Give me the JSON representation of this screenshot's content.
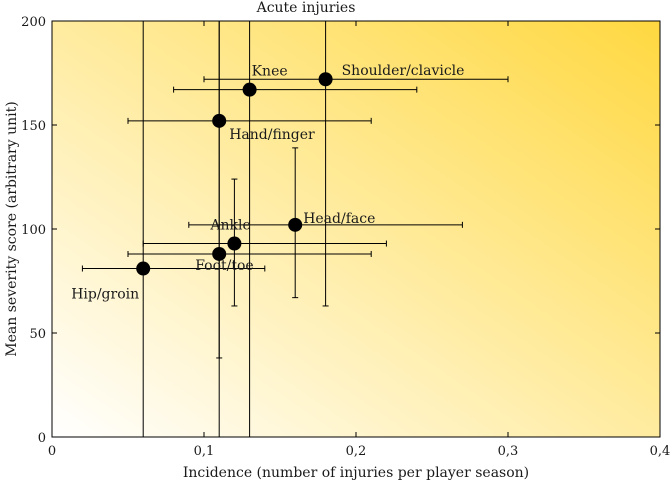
{
  "chart_data": {
    "type": "scatter",
    "title": "Acute injuries",
    "xlabel": "Incidence (number of injuries per player season)",
    "ylabel": "Mean severity score (arbitrary unit)",
    "xlim": [
      0,
      0.4
    ],
    "ylim": [
      0,
      200
    ],
    "xticks": [
      0,
      0.1,
      0.2,
      0.3,
      0.4
    ],
    "xtick_labels": [
      "0",
      "0,1",
      "0,2",
      "0,3",
      "0,4"
    ],
    "yticks": [
      0,
      50,
      100,
      150,
      200
    ],
    "ytick_labels": [
      "0",
      "50",
      "100",
      "150",
      "200"
    ],
    "grid": false,
    "background_gradient": [
      "#ffffff",
      "#ffd840"
    ],
    "points": [
      {
        "label": "Knee",
        "x": 0.13,
        "y": 167,
        "x_err": [
          0.08,
          0.24
        ],
        "y_err": [
          0,
          200
        ]
      },
      {
        "label": "Shoulder/clavicle",
        "x": 0.18,
        "y": 172,
        "x_err": [
          0.1,
          0.3
        ],
        "y_err": [
          63,
          200
        ]
      },
      {
        "label": "Hand/finger",
        "x": 0.11,
        "y": 152,
        "x_err": [
          0.05,
          0.21
        ],
        "y_err": [
          0,
          200
        ]
      },
      {
        "label": "Head/face",
        "x": 0.16,
        "y": 102,
        "x_err": [
          0.09,
          0.27
        ],
        "y_err": [
          67,
          139
        ]
      },
      {
        "label": "Ankle",
        "x": 0.12,
        "y": 93,
        "x_err": [
          0.06,
          0.22
        ],
        "y_err": [
          63,
          124
        ]
      },
      {
        "label": "Foot/toe",
        "x": 0.11,
        "y": 88,
        "x_err": [
          0.05,
          0.21
        ],
        "y_err": [
          38,
          200
        ]
      },
      {
        "label": "Hip/groin",
        "x": 0.06,
        "y": 81,
        "x_err": [
          0.02,
          0.14
        ],
        "y_err": [
          0,
          200
        ]
      }
    ]
  }
}
